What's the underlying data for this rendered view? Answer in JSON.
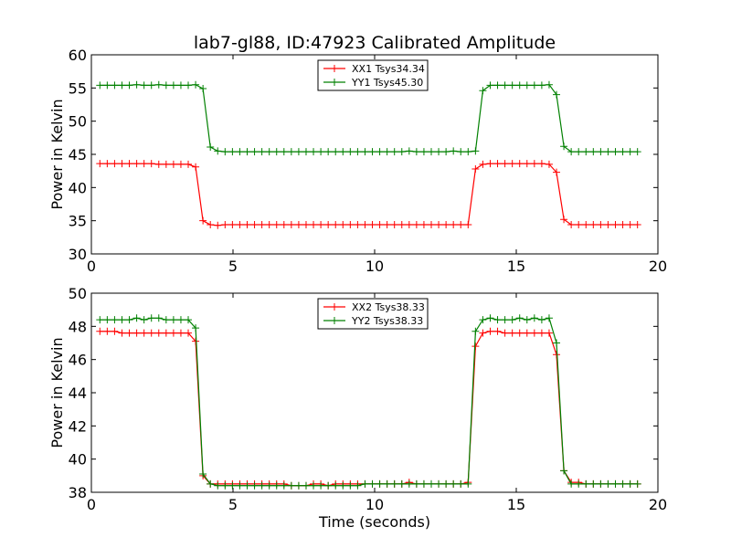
{
  "chart_data": [
    {
      "type": "line",
      "title": "lab7-gl88, ID:47923 Calibrated Amplitude",
      "xlabel": "",
      "ylabel": "Power in Kelvin",
      "xlim": [
        0,
        20
      ],
      "ylim": [
        30,
        60
      ],
      "xticks": [
        0,
        5,
        10,
        15,
        20
      ],
      "yticks": [
        30,
        35,
        40,
        45,
        50,
        55,
        60
      ],
      "legend_position": "top-center",
      "x": [
        0.3,
        0.56,
        0.82,
        1.08,
        1.34,
        1.6,
        1.86,
        2.12,
        2.38,
        2.64,
        2.9,
        3.16,
        3.42,
        3.68,
        3.94,
        4.2,
        4.46,
        4.72,
        4.98,
        5.24,
        5.5,
        5.76,
        6.02,
        6.28,
        6.54,
        6.8,
        7.06,
        7.32,
        7.58,
        7.84,
        8.1,
        8.36,
        8.62,
        8.88,
        9.14,
        9.4,
        9.66,
        9.92,
        10.18,
        10.44,
        10.7,
        10.96,
        11.22,
        11.48,
        11.74,
        12.0,
        12.26,
        12.52,
        12.78,
        13.04,
        13.3,
        13.56,
        13.82,
        14.08,
        14.34,
        14.6,
        14.86,
        15.12,
        15.38,
        15.64,
        15.9,
        16.16,
        16.42,
        16.68,
        16.94,
        17.2,
        17.46,
        17.72,
        17.98,
        18.24,
        18.5,
        18.76,
        19.02,
        19.28
      ],
      "series": [
        {
          "name": "XX1 Tsys34.34",
          "color": "#ff0000",
          "values": [
            43.6,
            43.6,
            43.6,
            43.6,
            43.6,
            43.6,
            43.6,
            43.6,
            43.5,
            43.5,
            43.5,
            43.5,
            43.5,
            43.1,
            35.0,
            34.4,
            34.3,
            34.4,
            34.4,
            34.4,
            34.4,
            34.4,
            34.4,
            34.4,
            34.4,
            34.4,
            34.4,
            34.4,
            34.4,
            34.4,
            34.4,
            34.4,
            34.4,
            34.4,
            34.4,
            34.4,
            34.4,
            34.4,
            34.4,
            34.4,
            34.4,
            34.4,
            34.4,
            34.4,
            34.4,
            34.4,
            34.4,
            34.4,
            34.4,
            34.4,
            34.4,
            42.8,
            43.5,
            43.6,
            43.6,
            43.6,
            43.6,
            43.6,
            43.6,
            43.6,
            43.6,
            43.5,
            42.3,
            35.2,
            34.4,
            34.4,
            34.4,
            34.4,
            34.4,
            34.4,
            34.4,
            34.4,
            34.4,
            34.4
          ]
        },
        {
          "name": "YY1 Tsys45.30",
          "color": "#008000",
          "values": [
            55.4,
            55.4,
            55.4,
            55.4,
            55.4,
            55.5,
            55.4,
            55.4,
            55.5,
            55.4,
            55.4,
            55.4,
            55.4,
            55.5,
            54.9,
            46.1,
            45.5,
            45.4,
            45.4,
            45.4,
            45.4,
            45.4,
            45.4,
            45.4,
            45.4,
            45.4,
            45.4,
            45.4,
            45.4,
            45.4,
            45.4,
            45.4,
            45.4,
            45.4,
            45.4,
            45.4,
            45.4,
            45.4,
            45.4,
            45.4,
            45.4,
            45.4,
            45.5,
            45.4,
            45.4,
            45.4,
            45.4,
            45.4,
            45.5,
            45.4,
            45.4,
            45.5,
            54.6,
            55.4,
            55.4,
            55.4,
            55.4,
            55.4,
            55.4,
            55.4,
            55.4,
            55.5,
            54.0,
            46.2,
            45.4,
            45.4,
            45.4,
            45.4,
            45.4,
            45.4,
            45.4,
            45.4,
            45.4,
            45.4
          ]
        }
      ]
    },
    {
      "type": "line",
      "title": "",
      "xlabel": "Time (seconds)",
      "ylabel": "Power in Kelvin",
      "xlim": [
        0,
        20
      ],
      "ylim": [
        38,
        50
      ],
      "xticks": [
        0,
        5,
        10,
        15,
        20
      ],
      "yticks": [
        38,
        40,
        42,
        44,
        46,
        48,
        50
      ],
      "legend_position": "top-center",
      "x": [
        0.3,
        0.56,
        0.82,
        1.08,
        1.34,
        1.6,
        1.86,
        2.12,
        2.38,
        2.64,
        2.9,
        3.16,
        3.42,
        3.68,
        3.94,
        4.2,
        4.46,
        4.72,
        4.98,
        5.24,
        5.5,
        5.76,
        6.02,
        6.28,
        6.54,
        6.8,
        7.06,
        7.32,
        7.58,
        7.84,
        8.1,
        8.36,
        8.62,
        8.88,
        9.14,
        9.4,
        9.66,
        9.92,
        10.18,
        10.44,
        10.7,
        10.96,
        11.22,
        11.48,
        11.74,
        12.0,
        12.26,
        12.52,
        12.78,
        13.04,
        13.3,
        13.56,
        13.82,
        14.08,
        14.34,
        14.6,
        14.86,
        15.12,
        15.38,
        15.64,
        15.9,
        16.16,
        16.42,
        16.68,
        16.94,
        17.2,
        17.46,
        17.72,
        17.98,
        18.24,
        18.5,
        18.76,
        19.02,
        19.28
      ],
      "series": [
        {
          "name": "XX2 Tsys38.33",
          "color": "#ff0000",
          "values": [
            47.7,
            47.7,
            47.7,
            47.6,
            47.6,
            47.6,
            47.6,
            47.6,
            47.6,
            47.6,
            47.6,
            47.6,
            47.6,
            47.1,
            39.0,
            38.5,
            38.5,
            38.5,
            38.5,
            38.5,
            38.5,
            38.5,
            38.5,
            38.5,
            38.5,
            38.5,
            38.4,
            38.4,
            38.4,
            38.5,
            38.5,
            38.4,
            38.5,
            38.5,
            38.5,
            38.5,
            38.5,
            38.5,
            38.5,
            38.5,
            38.5,
            38.5,
            38.6,
            38.5,
            38.5,
            38.5,
            38.5,
            38.5,
            38.5,
            38.5,
            38.6,
            46.8,
            47.6,
            47.7,
            47.7,
            47.6,
            47.6,
            47.6,
            47.6,
            47.6,
            47.6,
            47.6,
            46.3,
            39.3,
            38.6,
            38.6,
            38.5,
            38.5,
            38.5,
            38.5,
            38.5,
            38.5,
            38.5,
            38.5
          ]
        },
        {
          "name": "YY2 Tsys38.33",
          "color": "#008000",
          "values": [
            48.4,
            48.4,
            48.4,
            48.4,
            48.4,
            48.5,
            48.4,
            48.5,
            48.5,
            48.4,
            48.4,
            48.4,
            48.4,
            47.9,
            39.1,
            38.5,
            38.4,
            38.4,
            38.4,
            38.4,
            38.4,
            38.4,
            38.4,
            38.4,
            38.4,
            38.4,
            38.4,
            38.4,
            38.4,
            38.4,
            38.4,
            38.4,
            38.4,
            38.4,
            38.4,
            38.4,
            38.5,
            38.5,
            38.5,
            38.5,
            38.5,
            38.5,
            38.5,
            38.5,
            38.5,
            38.5,
            38.5,
            38.5,
            38.5,
            38.5,
            38.5,
            47.7,
            48.4,
            48.5,
            48.4,
            48.4,
            48.4,
            48.5,
            48.4,
            48.5,
            48.4,
            48.5,
            47.0,
            39.3,
            38.5,
            38.5,
            38.5,
            38.5,
            38.5,
            38.5,
            38.5,
            38.5,
            38.5,
            38.5
          ]
        }
      ]
    }
  ]
}
